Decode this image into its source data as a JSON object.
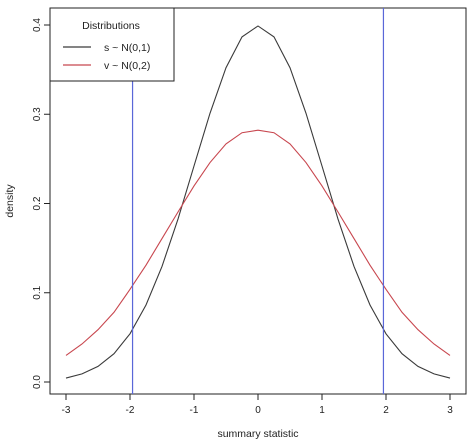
{
  "chart_data": {
    "type": "line",
    "title": "",
    "xlabel": "summary statistic",
    "ylabel": "density",
    "xlim": [
      -3,
      3
    ],
    "ylim": [
      0,
      0.4
    ],
    "x_ticks": [
      -3,
      -2,
      -1,
      0,
      1,
      2,
      3
    ],
    "y_ticks": [
      0.0,
      0.1,
      0.2,
      0.3,
      0.4
    ],
    "x_tick_labels": [
      "-3",
      "-2",
      "-1",
      "0",
      "1",
      "2",
      "3"
    ],
    "y_tick_labels": [
      "0.0",
      "0.1",
      "0.2",
      "0.3",
      "0.4"
    ],
    "grid": false,
    "legend": {
      "title": "Distributions",
      "position": "top-left",
      "entries": [
        {
          "label": "s ~ N(0,1)",
          "color": "#3a3a3a"
        },
        {
          "label": "v ~ N(0,2)",
          "color": "#c8474f"
        }
      ]
    },
    "series": [
      {
        "name": "s ~ N(0,1)",
        "color": "#3a3a3a",
        "x": [
          -3.0,
          -2.75,
          -2.5,
          -2.25,
          -2.0,
          -1.75,
          -1.5,
          -1.25,
          -1.0,
          -0.75,
          -0.5,
          -0.25,
          0.0,
          0.25,
          0.5,
          0.75,
          1.0,
          1.25,
          1.5,
          1.75,
          2.0,
          2.25,
          2.5,
          2.75,
          3.0
        ],
        "y": [
          0.0044,
          0.0091,
          0.0175,
          0.0317,
          0.054,
          0.0863,
          0.1295,
          0.1826,
          0.242,
          0.3011,
          0.3521,
          0.3867,
          0.3989,
          0.3867,
          0.3521,
          0.3011,
          0.242,
          0.1826,
          0.1295,
          0.0863,
          0.054,
          0.0317,
          0.0175,
          0.0091,
          0.0044
        ]
      },
      {
        "name": "v ~ N(0,2)",
        "color": "#c8474f",
        "x": [
          -3.0,
          -2.75,
          -2.5,
          -2.25,
          -2.0,
          -1.75,
          -1.5,
          -1.25,
          -1.0,
          -0.75,
          -0.5,
          -0.25,
          0.0,
          0.25,
          0.5,
          0.75,
          1.0,
          1.25,
          1.5,
          1.75,
          2.0,
          2.25,
          2.5,
          2.75,
          3.0
        ],
        "y": [
          0.0298,
          0.0426,
          0.0586,
          0.0781,
          0.1038,
          0.1309,
          0.1607,
          0.1905,
          0.2197,
          0.2459,
          0.2668,
          0.2793,
          0.2821,
          0.2793,
          0.2668,
          0.2459,
          0.2197,
          0.1905,
          0.1607,
          0.1309,
          0.1038,
          0.0781,
          0.0586,
          0.0426,
          0.0298
        ]
      }
    ],
    "vertical_lines": [
      {
        "x": -1.96,
        "color": "#5a67d8"
      },
      {
        "x": 1.96,
        "color": "#5a67d8"
      }
    ]
  }
}
